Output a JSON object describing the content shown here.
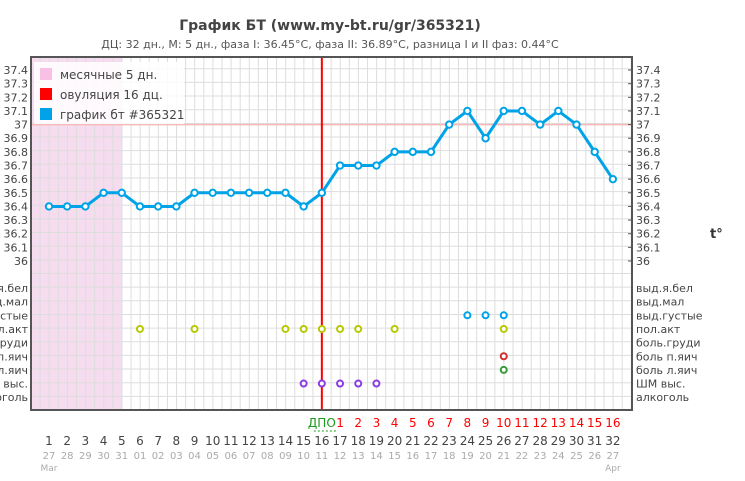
{
  "chart_data": {
    "type": "line",
    "title": "График БТ (www.my-bt.ru/gr/365321)",
    "subtitle": "ДЦ: 32 дн., М: 5 дн., фаза I: 36.45°C, фаза II: 36.89°C, разница I и II фаз: 0.44°C",
    "ylabel": "t°",
    "yticks": [
      "37.4",
      "37.3",
      "37.2",
      "37.1",
      "37",
      "36.9",
      "36.8",
      "36.7",
      "36.6",
      "36.5",
      "36.4",
      "36.3",
      "36.2",
      "36.1",
      "36"
    ],
    "ylim": [
      36,
      37.5
    ],
    "legend": [
      {
        "label": "месячные 5 дн.",
        "color": "#f9c0e6"
      },
      {
        "label": "овуляция 16 дц.",
        "color": "#ff0000"
      },
      {
        "label": "график бт #365321",
        "color": "#00a3e8"
      }
    ],
    "days": [
      1,
      2,
      3,
      4,
      5,
      6,
      7,
      8,
      9,
      10,
      11,
      12,
      13,
      14,
      15,
      16,
      17,
      18,
      19,
      20,
      21,
      22,
      23,
      24,
      25,
      26,
      27,
      28,
      29,
      30,
      31,
      32
    ],
    "dates": [
      "27",
      "28",
      "29",
      "30",
      "31",
      "01",
      "02",
      "03",
      "04",
      "05",
      "06",
      "07",
      "08",
      "09",
      "10",
      "11",
      "12",
      "13",
      "14",
      "15",
      "16",
      "17",
      "18",
      "19",
      "20",
      "21",
      "22",
      "23",
      "24",
      "25",
      "26",
      "27"
    ],
    "months": [
      "Mar",
      "Apr"
    ],
    "temps": [
      36.4,
      36.4,
      36.4,
      36.5,
      36.5,
      36.4,
      36.4,
      36.4,
      36.5,
      36.5,
      36.5,
      36.5,
      36.5,
      36.5,
      36.4,
      36.5,
      36.7,
      36.7,
      36.7,
      36.8,
      36.8,
      36.8,
      37.0,
      37.1,
      36.9,
      37.1,
      37.1,
      37.0,
      37.1,
      37.0,
      36.8,
      36.6
    ],
    "menstruation_days": 5,
    "ovulation_day": 16,
    "dpo_label": "ДПО",
    "dpo": [
      "1",
      "2",
      "3",
      "4",
      "5",
      "6",
      "7",
      "8",
      "9",
      "10",
      "11",
      "12",
      "13",
      "14",
      "15",
      "16"
    ],
    "symptoms": [
      {
        "label": "выд.я.бел",
        "color": "#00a3e8",
        "days": []
      },
      {
        "label": "выд.мал",
        "color": "#00a3e8",
        "days": []
      },
      {
        "label": "выд.густые",
        "color": "#00a3e8",
        "days": [
          24,
          25,
          26
        ]
      },
      {
        "label": "пол.акт",
        "color": "#b5c800",
        "days": [
          6,
          9,
          14,
          15,
          16,
          17,
          18,
          20,
          26
        ]
      },
      {
        "label": "боль.груди",
        "color": "#e03030",
        "days": []
      },
      {
        "label": "боль п.яич",
        "color": "#d03030",
        "days": [
          26
        ]
      },
      {
        "label": "боль л.яич",
        "color": "#3a9a3a",
        "days": [
          26
        ]
      },
      {
        "label": "ШМ выс.",
        "color": "#8a3ae0",
        "days": [
          15,
          16,
          17,
          18,
          19
        ]
      },
      {
        "label": "алкоголь",
        "color": "#888888",
        "days": []
      }
    ]
  }
}
